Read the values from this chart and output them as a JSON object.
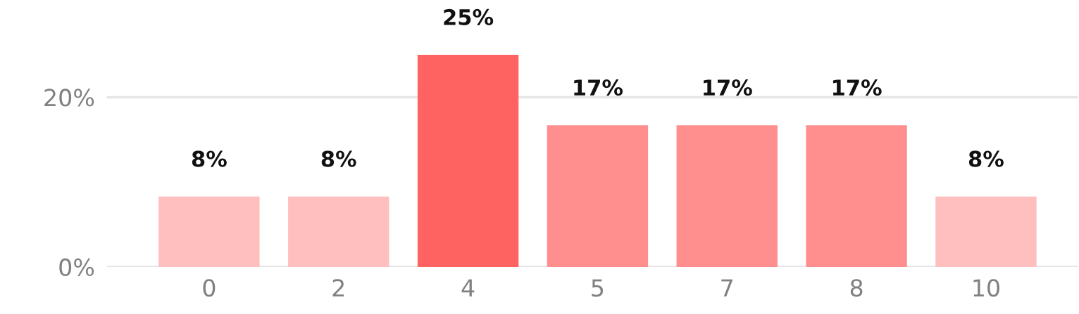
{
  "chart_data": {
    "type": "bar",
    "categories": [
      "0",
      "2",
      "4",
      "5",
      "7",
      "8",
      "10"
    ],
    "values": [
      8.3,
      8.3,
      25,
      16.7,
      16.7,
      16.7,
      8.3
    ],
    "colors": [
      "#ffbfbf",
      "#ffbfbf",
      "#ff6361",
      "#ff8f8f",
      "#ff8f8f",
      "#ff8f8f",
      "#ffbfbf"
    ],
    "value_labels": [
      "8%",
      "8%",
      "25%",
      "17%",
      "17%",
      "17%",
      "8%"
    ],
    "ylim": [
      0,
      25
    ],
    "yticks": [
      {
        "value": 0,
        "label": "0%"
      },
      {
        "value": 20,
        "label": "20%"
      }
    ],
    "grid": "y",
    "legend": false
  }
}
